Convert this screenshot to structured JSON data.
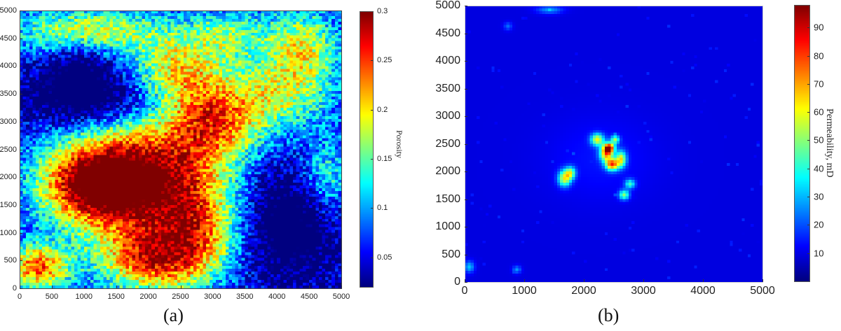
{
  "chart_data": [
    {
      "id": "a",
      "type": "heatmap",
      "caption": "(a)",
      "title": "",
      "xlabel": "",
      "ylabel": "",
      "xlim": [
        0,
        5000
      ],
      "ylim": [
        0,
        5000
      ],
      "xticks": [
        0,
        500,
        1000,
        1500,
        2000,
        2500,
        3000,
        3500,
        4000,
        4500,
        5000
      ],
      "yticks": [
        0,
        500,
        1000,
        1500,
        2000,
        2500,
        3000,
        3500,
        4000,
        4500,
        5000
      ],
      "colorbar": {
        "label": "Porosity",
        "range": [
          0.02,
          0.3
        ],
        "ticks": [
          0.05,
          0.1,
          0.15,
          0.2,
          0.25,
          0.3
        ],
        "colormap": "jet"
      },
      "description_field": "Porosity distribution; high values (~0.25-0.3) centered near x=2000, y=2000; low values (~0.05) on right side and upper band."
    },
    {
      "id": "b",
      "type": "heatmap",
      "caption": "(b)",
      "title": "",
      "xlabel": "",
      "ylabel": "",
      "xlim": [
        0,
        5000
      ],
      "ylim": [
        0,
        5000
      ],
      "xticks": [
        0,
        1000,
        2000,
        3000,
        4000,
        5000
      ],
      "yticks": [
        0,
        500,
        1000,
        1500,
        2000,
        2500,
        3000,
        3500,
        4000,
        4500,
        5000
      ],
      "colorbar": {
        "label": "Permeability, mD",
        "range": [
          0,
          98
        ],
        "ticks": [
          10,
          20,
          30,
          40,
          50,
          60,
          70,
          80,
          90
        ],
        "colormap": "jet"
      }
    }
  ]
}
